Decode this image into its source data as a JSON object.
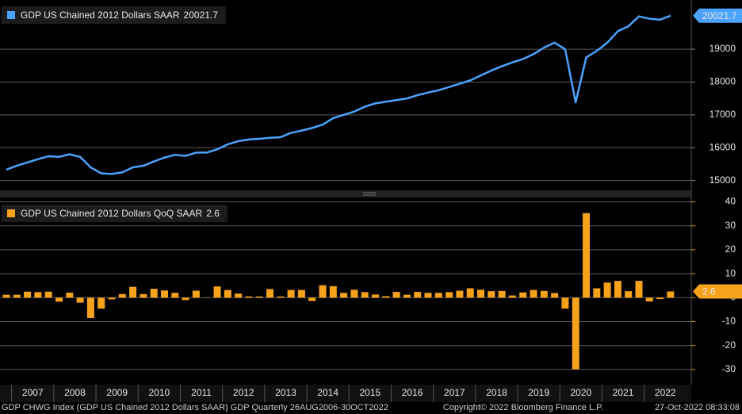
{
  "charts": [
    {
      "type": "line",
      "series": [
        {
          "name": "GDP US Chained 2012 Dollars SAAR",
          "color": "#4aa3ff",
          "values": [
            15330,
            15450,
            15550,
            15650,
            15740,
            15720,
            15800,
            15720,
            15400,
            15220,
            15200,
            15250,
            15400,
            15450,
            15580,
            15700,
            15780,
            15750,
            15850,
            15850,
            15950,
            16100,
            16200,
            16250,
            16270,
            16300,
            16320,
            16450,
            16520,
            16600,
            16700,
            16900,
            17000,
            17100,
            17250,
            17350,
            17400,
            17450,
            17500,
            17600,
            17680,
            17750,
            17850,
            17950,
            18050,
            18200,
            18350,
            18480,
            18600,
            18700,
            18850,
            19050,
            19200,
            19000,
            17380,
            18750,
            18950,
            19200,
            19550,
            19700,
            20000,
            19930,
            19900,
            20021.7
          ]
        }
      ],
      "ylim": [
        14700,
        20500
      ],
      "yticks": [
        15000,
        16000,
        17000,
        18000,
        19000
      ],
      "grid": true
    },
    {
      "type": "bar",
      "series": [
        {
          "name": "GDP US Chained 2012 Dollars QoQ SAAR",
          "color": "#f7a21b",
          "values": [
            1.2,
            1.2,
            2.5,
            2.3,
            2.5,
            -1.7,
            2.1,
            -2.1,
            -8.5,
            -4.6,
            -0.7,
            1.5,
            4.5,
            1.5,
            3.7,
            3.0,
            2.0,
            -1.0,
            2.9,
            -0.1,
            4.7,
            3.2,
            1.7,
            0.5,
            0.5,
            3.6,
            0.5,
            3.2,
            3.2,
            -1.4,
            5.2,
            4.8,
            2.0,
            3.3,
            2.3,
            1.3,
            0.6,
            2.4,
            1.2,
            2.4,
            2.0,
            2.0,
            2.3,
            2.9,
            3.9,
            3.3,
            2.7,
            2.8,
            0.9,
            2.2,
            3.2,
            2.8,
            1.9,
            -4.6,
            -29.9,
            35.3,
            3.9,
            6.3,
            7.0,
            2.7,
            7.0,
            -1.6,
            -0.6,
            2.6
          ]
        }
      ],
      "ylim": [
        -36,
        41.5
      ],
      "yticks": [
        -30,
        -20,
        -10,
        0,
        10,
        20,
        30,
        40
      ],
      "grid": true
    }
  ],
  "x_axis_labels": [
    "2007",
    "2008",
    "2009",
    "2010",
    "2011",
    "2012",
    "2013",
    "2014",
    "2015",
    "2016",
    "2017",
    "2018",
    "2019",
    "2020",
    "2021",
    "2022"
  ],
  "footer": {
    "left": "GDP CHWG Index (GDP US Chained 2012 Dollars SAAR) GDP  Quarterly 26AUG2006-30OCT2022",
    "center": "Copyright© 2022 Bloomberg Finance L.P.",
    "right": "27-Oct-2022 08:33:08"
  }
}
